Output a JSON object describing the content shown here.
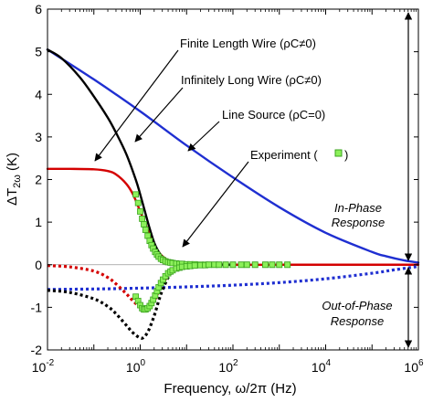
{
  "chart_data": {
    "type": "line",
    "xscale": "log",
    "xlim": [
      0.01,
      1000000
    ],
    "ylim": [
      -2,
      6
    ],
    "xlabel": "Frequency, ω/2π (Hz)",
    "ylabel_main": "ΔT",
    "ylabel_sub": "2ω",
    "ylabel_unit": " (K)",
    "x_ticks": [
      {
        "value": 0.01,
        "base": "10",
        "exp": "-2"
      },
      {
        "value": 1,
        "base": "10",
        "exp": "0"
      },
      {
        "value": 100,
        "base": "10",
        "exp": "2"
      },
      {
        "value": 10000,
        "base": "10",
        "exp": "4"
      },
      {
        "value": 1000000,
        "base": "10",
        "exp": "6"
      }
    ],
    "y_ticks": [
      {
        "value": -2,
        "label": "-2"
      },
      {
        "value": -1,
        "label": "-1"
      },
      {
        "value": 0,
        "label": "0"
      },
      {
        "value": 1,
        "label": "1"
      },
      {
        "value": 2,
        "label": "2"
      },
      {
        "value": 3,
        "label": "3"
      },
      {
        "value": 4,
        "label": "4"
      },
      {
        "value": 5,
        "label": "5"
      },
      {
        "value": 6,
        "label": "6"
      }
    ],
    "colors": {
      "finite": "#000000",
      "infinite": "#d40000",
      "line_source": "#1f2fd1",
      "experiment_fill": "#8cf05a",
      "experiment_edge": "#3aa31e"
    },
    "series": [
      {
        "id": "finite_in",
        "style": "solid",
        "color": "#000000",
        "x": [
          0.01,
          0.02,
          0.05,
          0.1,
          0.2,
          0.3,
          0.5,
          0.8,
          1,
          1.3,
          1.6,
          2,
          2.5,
          3,
          4,
          5,
          7,
          10,
          15,
          20,
          30,
          50,
          100
        ],
        "y": [
          5.05,
          4.85,
          4.4,
          3.95,
          3.45,
          3.1,
          2.6,
          2.0,
          1.65,
          1.2,
          0.85,
          0.52,
          0.3,
          0.18,
          0.08,
          0.04,
          0.02,
          0.01,
          0.005,
          0.003,
          0.002,
          0.001,
          0.0
        ]
      },
      {
        "id": "infinite_in",
        "style": "solid",
        "color": "#d40000",
        "x": [
          0.01,
          0.03,
          0.1,
          0.2,
          0.3,
          0.5,
          0.7,
          1,
          1.3,
          1.6,
          2,
          2.5,
          3,
          4,
          5,
          7,
          10,
          20,
          100,
          1000,
          10000,
          100000,
          1000000
        ],
        "y": [
          2.25,
          2.25,
          2.24,
          2.2,
          2.12,
          1.9,
          1.65,
          1.25,
          0.95,
          0.7,
          0.48,
          0.3,
          0.2,
          0.1,
          0.06,
          0.03,
          0.02,
          0.01,
          0.0,
          0.0,
          0.0,
          0.0,
          0.0
        ]
      },
      {
        "id": "line_source_in",
        "style": "solid",
        "color": "#1f2fd1",
        "x": [
          0.01,
          0.1,
          1,
          10,
          100,
          1000,
          10000,
          100000,
          200000,
          500000,
          1000000
        ],
        "y": [
          5.05,
          4.35,
          3.6,
          2.8,
          2.05,
          1.35,
          0.75,
          0.3,
          0.2,
          0.1,
          0.05
        ]
      },
      {
        "id": "finite_out",
        "style": "dotted",
        "color": "#000000",
        "x": [
          0.01,
          0.03,
          0.1,
          0.2,
          0.3,
          0.5,
          0.7,
          1,
          1.2,
          1.5,
          2,
          2.5,
          3,
          4,
          5,
          7,
          10,
          15,
          20
        ],
        "y": [
          -0.6,
          -0.65,
          -0.8,
          -0.98,
          -1.15,
          -1.42,
          -1.6,
          -1.72,
          -1.7,
          -1.55,
          -1.2,
          -0.85,
          -0.6,
          -0.3,
          -0.15,
          -0.06,
          -0.03,
          -0.01,
          0.0
        ]
      },
      {
        "id": "infinite_out",
        "style": "dotted",
        "color": "#d40000",
        "x": [
          0.01,
          0.03,
          0.1,
          0.2,
          0.3,
          0.5,
          0.7,
          1,
          1.3,
          1.6,
          2,
          2.5,
          3,
          4,
          5,
          7,
          10,
          20
        ],
        "y": [
          -0.02,
          -0.05,
          -0.15,
          -0.3,
          -0.45,
          -0.68,
          -0.85,
          -1.0,
          -1.05,
          -1.0,
          -0.85,
          -0.62,
          -0.45,
          -0.25,
          -0.15,
          -0.07,
          -0.03,
          0.0
        ]
      },
      {
        "id": "line_source_out",
        "style": "dotted",
        "color": "#1f2fd1",
        "x": [
          0.01,
          0.1,
          1,
          10,
          100,
          1000,
          10000,
          100000,
          300000,
          1000000
        ],
        "y": [
          -0.58,
          -0.57,
          -0.55,
          -0.52,
          -0.48,
          -0.42,
          -0.33,
          -0.2,
          -0.12,
          -0.04
        ]
      }
    ],
    "experiment": {
      "in_phase": {
        "x": [
          0.8,
          0.9,
          1.0,
          1.1,
          1.2,
          1.3,
          1.45,
          1.6,
          1.75,
          1.9,
          2.1,
          2.3,
          2.5,
          2.8,
          3.1,
          3.5,
          4.0,
          4.5,
          5,
          6,
          7,
          8,
          10,
          12,
          15,
          20,
          25,
          30,
          40,
          50,
          70,
          100,
          150,
          200,
          300,
          500,
          700,
          1000,
          1500
        ],
        "y": [
          1.65,
          1.45,
          1.25,
          1.08,
          0.95,
          0.82,
          0.68,
          0.56,
          0.46,
          0.38,
          0.3,
          0.24,
          0.19,
          0.14,
          0.11,
          0.08,
          0.06,
          0.05,
          0.04,
          0.03,
          0.02,
          0.02,
          0.01,
          0.01,
          0.01,
          0.0,
          0.0,
          0.0,
          0.0,
          0.0,
          0.0,
          0.0,
          0.0,
          0.0,
          0.0,
          0.0,
          0.0,
          0.0,
          0.0
        ]
      },
      "out_of_phase": {
        "x": [
          0.8,
          0.9,
          1.0,
          1.1,
          1.2,
          1.3,
          1.45,
          1.6,
          1.75,
          1.9,
          2.1,
          2.3,
          2.5,
          2.8,
          3.1,
          3.5,
          4.0,
          4.5,
          5,
          6,
          7,
          8,
          10,
          12,
          15,
          20,
          25,
          30,
          40,
          50,
          70,
          100,
          150,
          200,
          300,
          500,
          700,
          1000,
          1500
        ],
        "y": [
          -0.75,
          -0.85,
          -0.95,
          -1.02,
          -1.05,
          -1.05,
          -1.02,
          -0.97,
          -0.9,
          -0.82,
          -0.72,
          -0.62,
          -0.53,
          -0.43,
          -0.35,
          -0.27,
          -0.2,
          -0.16,
          -0.13,
          -0.09,
          -0.07,
          -0.05,
          -0.04,
          -0.03,
          -0.02,
          -0.01,
          -0.01,
          0.0,
          0.0,
          0.0,
          0.0,
          0.0,
          0.0,
          0.0,
          0.0,
          0.0,
          0.0,
          0.0,
          0.0
        ]
      }
    },
    "annotations": {
      "finite_label": "Finite Length Wire (ρC≠0)",
      "infinite_label": "Infinitely Long Wire (ρC≠0)",
      "line_source_label": "Line Source (ρC=0)",
      "experiment_label": "Experiment (",
      "experiment_label_end": ")",
      "in_phase_line1": "In-Phase",
      "in_phase_line2": "Response",
      "out_phase_line1": "Out-of-Phase",
      "out_phase_line2": "Response"
    }
  }
}
